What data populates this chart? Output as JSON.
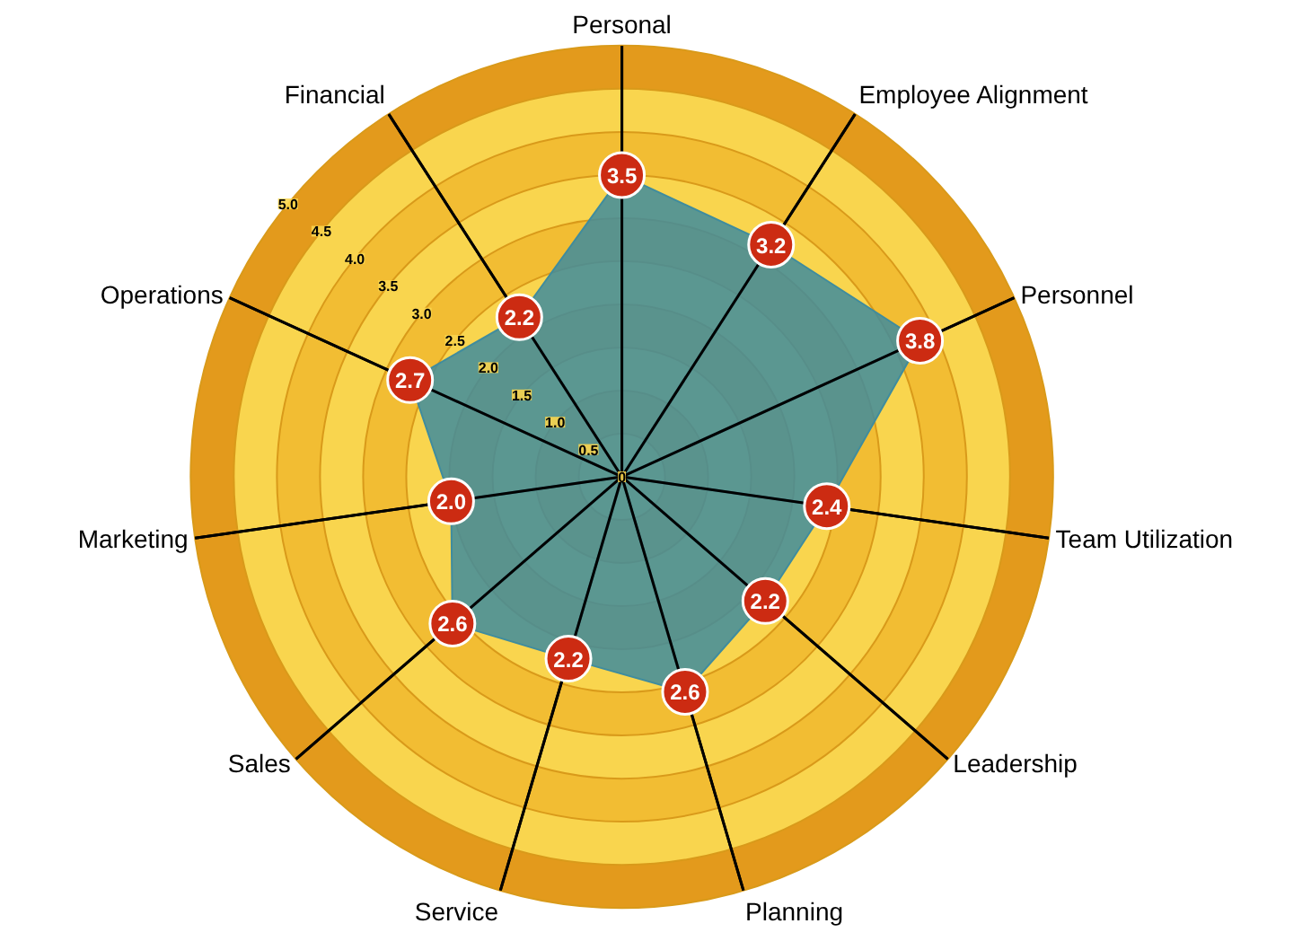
{
  "chart_data": {
    "type": "radar",
    "categories": [
      "Personal",
      "Employee Alignment",
      "Personnel",
      "Team Utilization",
      "Leadership",
      "Planning",
      "Service",
      "Sales",
      "Marketing",
      "Operations",
      "Financial"
    ],
    "series": [
      {
        "color": "#3f8c9e",
        "values": [
          3.5,
          3.2,
          3.8,
          2.4,
          2.2,
          2.6,
          2.2,
          2.6,
          2.0,
          2.7,
          2.2
        ],
        "value_labels": [
          "3.5",
          "3.2",
          "3.8",
          "2.4",
          "2.2",
          "2.6",
          "2.2",
          "2.6",
          "2.0",
          "2.7",
          "2.2"
        ]
      }
    ],
    "ylim": [
      0,
      5
    ],
    "yticks": [
      0,
      0.5,
      {
        "value": 1,
        "label": "1.0"
      },
      1.5,
      {
        "value": 2,
        "label": "2.0"
      },
      2.5,
      {
        "value": 3,
        "label": "3.0"
      },
      3.5,
      {
        "value": 4,
        "label": "4.0"
      },
      4.5,
      {
        "value": 5,
        "label": "5.0"
      }
    ],
    "grid": true,
    "marker": "circle"
  }
}
